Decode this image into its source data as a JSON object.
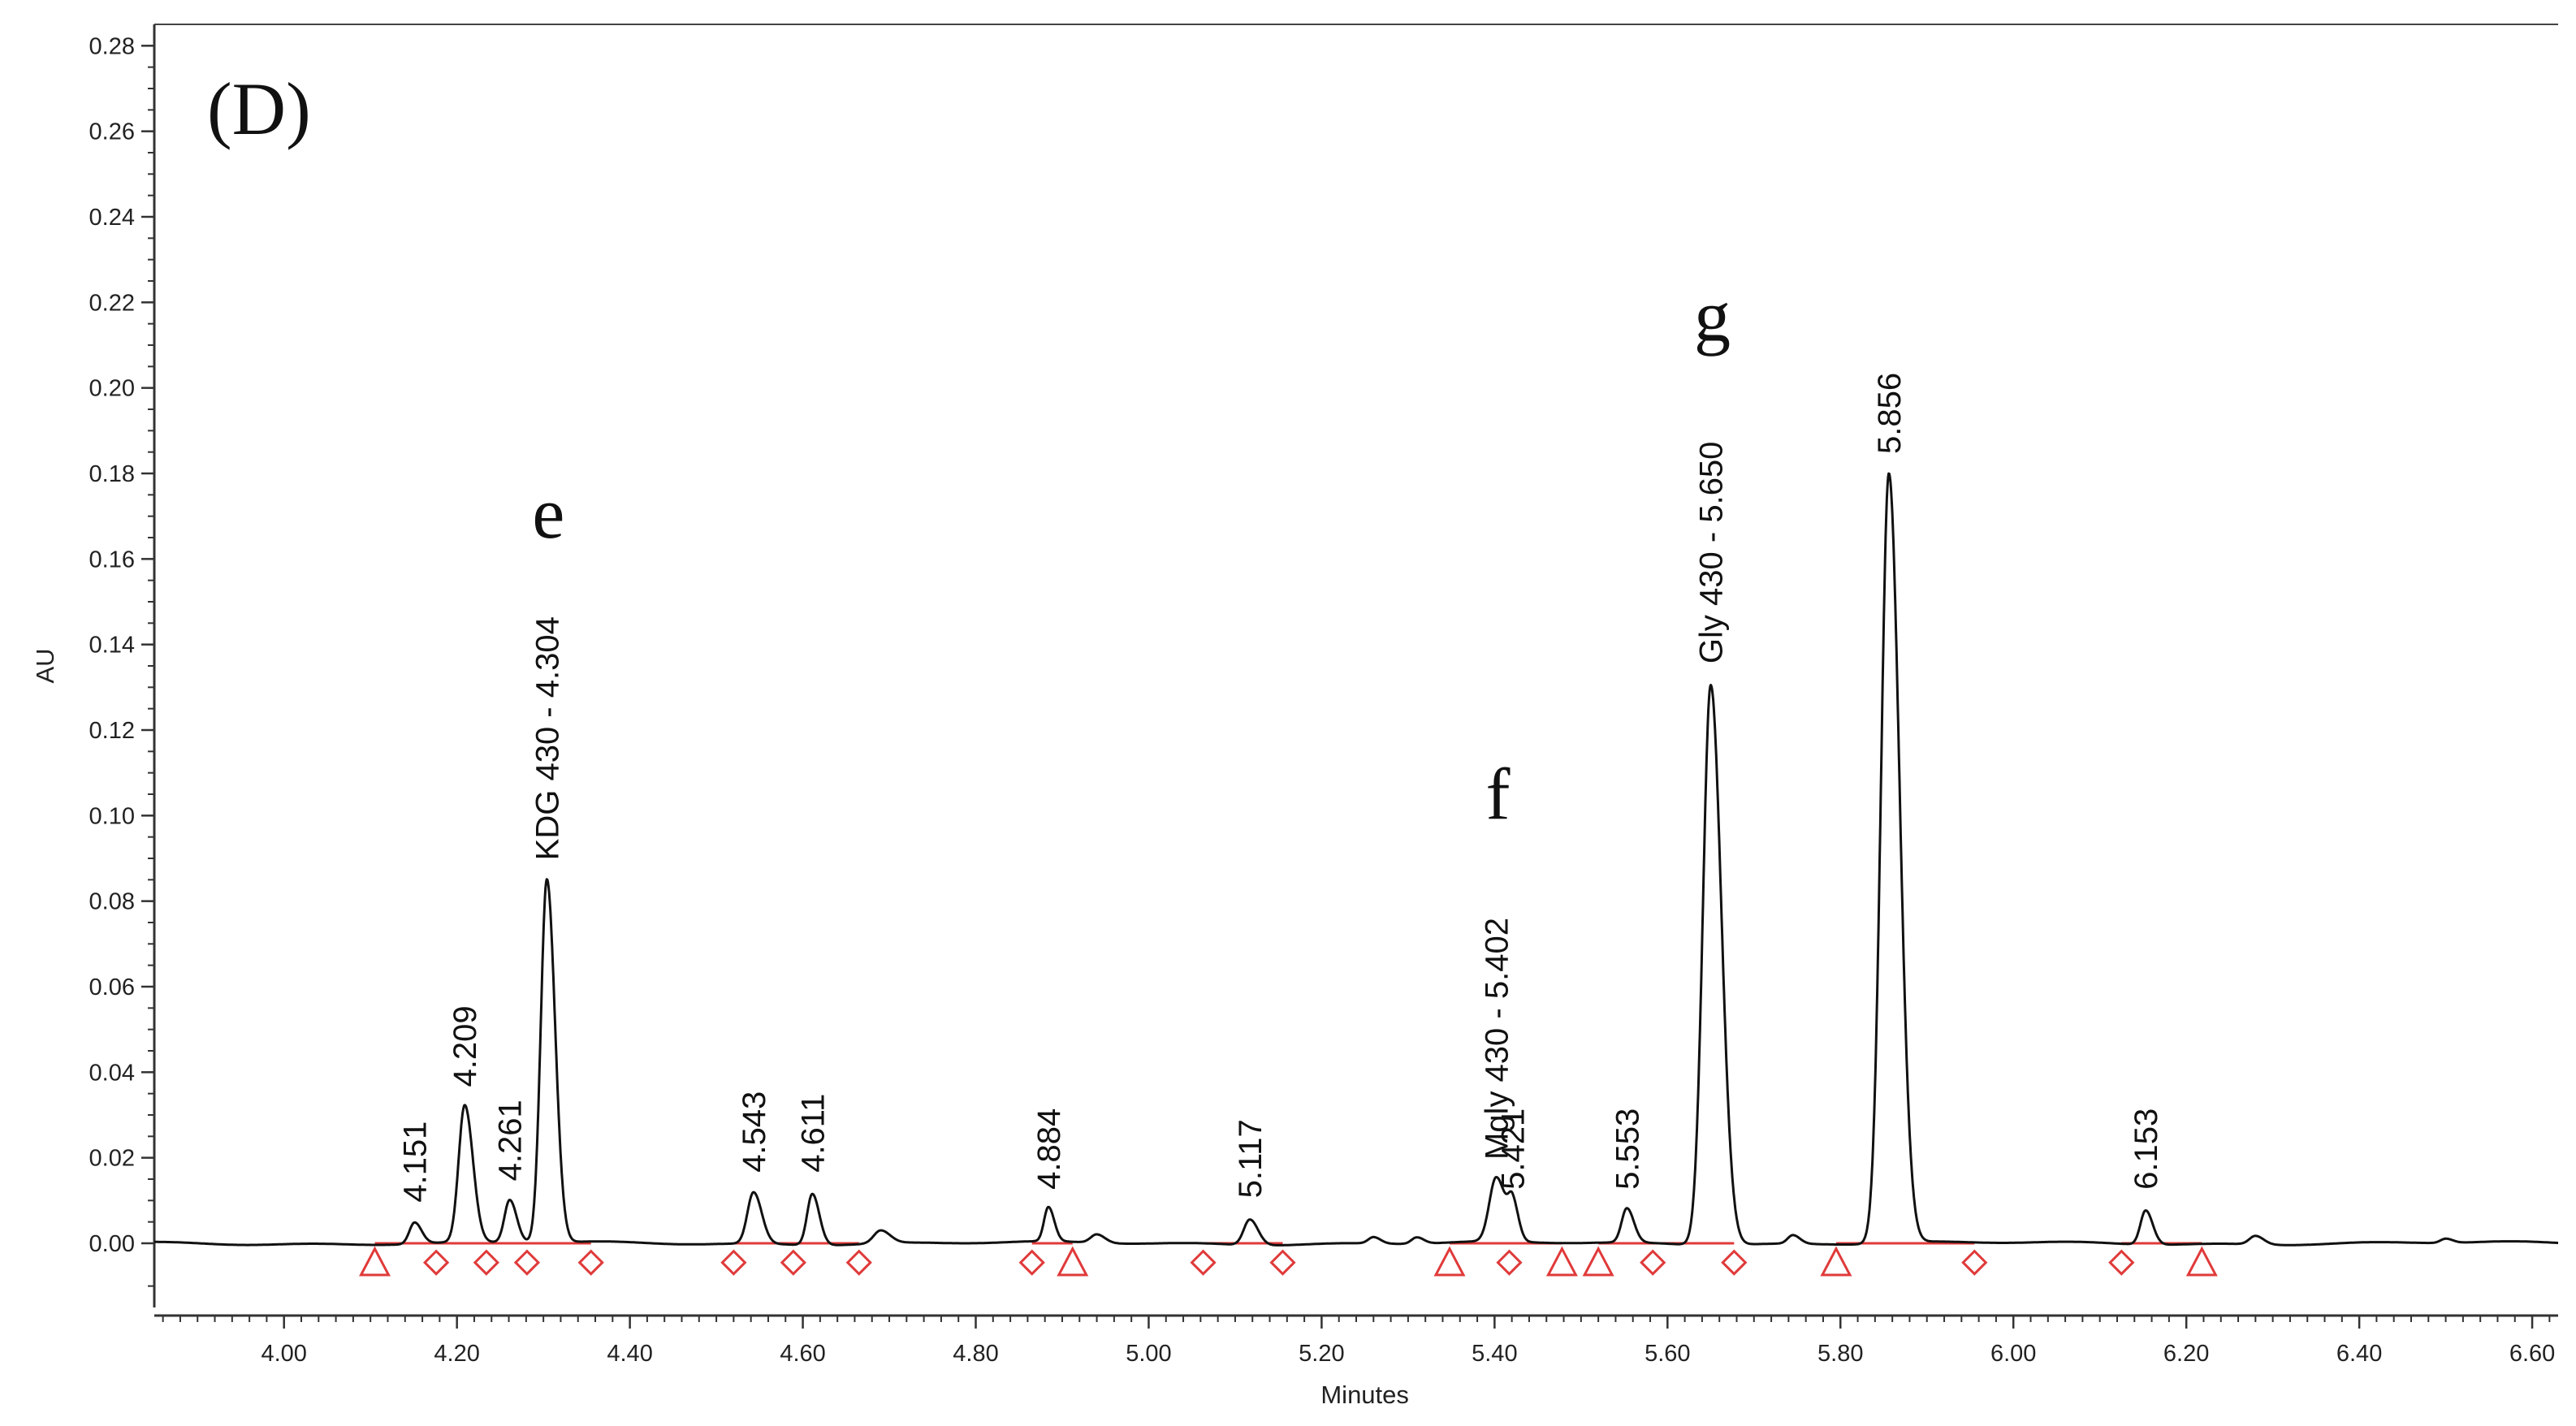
{
  "chart_data": {
    "type": "line",
    "panel_label": "(D)",
    "xlabel": "Minutes",
    "ylabel": "AU",
    "xlim": [
      3.85,
      6.63
    ],
    "ylim": [
      -0.015,
      0.285
    ],
    "x_ticks": [
      "4.00",
      "4.20",
      "4.40",
      "4.60",
      "4.80",
      "5.00",
      "5.20",
      "5.40",
      "5.60",
      "5.80",
      "6.00",
      "6.20",
      "6.40",
      "6.60"
    ],
    "y_ticks": [
      "0.00",
      "0.02",
      "0.04",
      "0.06",
      "0.08",
      "0.10",
      "0.12",
      "0.14",
      "0.16",
      "0.18",
      "0.20",
      "0.22",
      "0.24",
      "0.26",
      "0.28"
    ],
    "colors": {
      "trace": "#111111",
      "baseline": "#e03a3a",
      "markers": "#e03a3a"
    },
    "peaks": [
      {
        "rt": 4.151,
        "height": 0.005,
        "width": 0.006,
        "label": "4.151"
      },
      {
        "rt": 4.209,
        "height": 0.032,
        "width": 0.007,
        "label": "4.209"
      },
      {
        "rt": 4.261,
        "height": 0.01,
        "width": 0.006,
        "label": "4.261"
      },
      {
        "rt": 4.304,
        "height": 0.085,
        "width": 0.007,
        "label": "KDG 430 - 4.304",
        "marker": "e"
      },
      {
        "rt": 4.543,
        "height": 0.012,
        "width": 0.007,
        "label": "4.543"
      },
      {
        "rt": 4.611,
        "height": 0.012,
        "width": 0.006,
        "label": "4.611"
      },
      {
        "rt": 4.69,
        "height": 0.003,
        "width": 0.008
      },
      {
        "rt": 4.884,
        "height": 0.008,
        "width": 0.005,
        "label": "4.884"
      },
      {
        "rt": 4.94,
        "height": 0.002,
        "width": 0.007
      },
      {
        "rt": 5.117,
        "height": 0.006,
        "width": 0.007,
        "label": "5.117"
      },
      {
        "rt": 5.26,
        "height": 0.0015,
        "width": 0.006
      },
      {
        "rt": 5.31,
        "height": 0.0015,
        "width": 0.006
      },
      {
        "rt": 5.402,
        "height": 0.015,
        "width": 0.008,
        "label": "Mgly 430 - 5.402",
        "marker": "f"
      },
      {
        "rt": 5.421,
        "height": 0.008,
        "width": 0.005,
        "label": "5.421"
      },
      {
        "rt": 5.553,
        "height": 0.008,
        "width": 0.006,
        "label": "5.553"
      },
      {
        "rt": 5.65,
        "height": 0.131,
        "width": 0.009,
        "label": "Gly 430 - 5.650",
        "marker": "g"
      },
      {
        "rt": 5.745,
        "height": 0.002,
        "width": 0.006
      },
      {
        "rt": 5.856,
        "height": 0.18,
        "width": 0.009,
        "label": "5.856"
      },
      {
        "rt": 6.153,
        "height": 0.008,
        "width": 0.006,
        "label": "6.153"
      },
      {
        "rt": 6.28,
        "height": 0.002,
        "width": 0.007
      },
      {
        "rt": 6.5,
        "height": 0.001,
        "width": 0.006
      }
    ],
    "baseline_segments": [
      {
        "start": 4.105,
        "end": 4.355
      },
      {
        "start": 4.52,
        "end": 4.665
      },
      {
        "start": 4.865,
        "end": 4.912
      },
      {
        "start": 5.063,
        "end": 5.155
      },
      {
        "start": 5.348,
        "end": 5.478
      },
      {
        "start": 5.52,
        "end": 5.677
      },
      {
        "start": 5.795,
        "end": 5.955
      },
      {
        "start": 6.125,
        "end": 6.218
      }
    ],
    "integration_marks": [
      {
        "x": 4.105,
        "shape": "triangle"
      },
      {
        "x": 4.176,
        "shape": "diamond"
      },
      {
        "x": 4.234,
        "shape": "diamond"
      },
      {
        "x": 4.281,
        "shape": "diamond"
      },
      {
        "x": 4.355,
        "shape": "diamond"
      },
      {
        "x": 4.52,
        "shape": "diamond"
      },
      {
        "x": 4.589,
        "shape": "diamond"
      },
      {
        "x": 4.665,
        "shape": "diamond"
      },
      {
        "x": 4.865,
        "shape": "diamond"
      },
      {
        "x": 4.912,
        "shape": "triangle"
      },
      {
        "x": 5.063,
        "shape": "diamond"
      },
      {
        "x": 5.155,
        "shape": "diamond"
      },
      {
        "x": 5.348,
        "shape": "triangle"
      },
      {
        "x": 5.417,
        "shape": "diamond"
      },
      {
        "x": 5.478,
        "shape": "triangle"
      },
      {
        "x": 5.52,
        "shape": "triangle"
      },
      {
        "x": 5.583,
        "shape": "diamond"
      },
      {
        "x": 5.677,
        "shape": "diamond"
      },
      {
        "x": 5.795,
        "shape": "triangle"
      },
      {
        "x": 5.955,
        "shape": "diamond"
      },
      {
        "x": 6.125,
        "shape": "diamond"
      },
      {
        "x": 6.218,
        "shape": "triangle"
      }
    ]
  }
}
